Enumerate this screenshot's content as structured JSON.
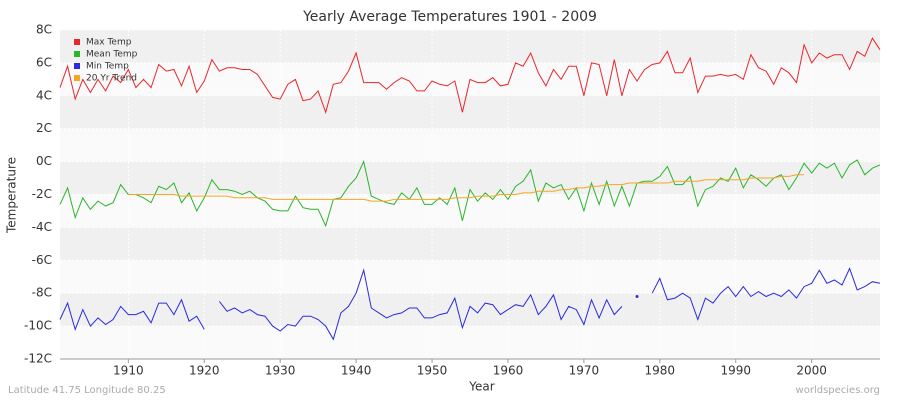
{
  "chart_data": {
    "type": "line",
    "title": "Yearly Average Temperatures 1901 - 2009",
    "x_label": "Year",
    "y_label": "Temperature",
    "footer_left": "Latitude 41.75 Longitude 80.25",
    "footer_right": "worldspecies.org",
    "legend": "top-left",
    "grid": true,
    "xlim": [
      1901,
      2009
    ],
    "ylim": [
      -12,
      8
    ],
    "xticks": [
      1910,
      1920,
      1930,
      1940,
      1950,
      1960,
      1970,
      1980,
      1990,
      2000
    ],
    "yticks": [
      {
        "value": -12,
        "label": "-12C"
      },
      {
        "value": -10,
        "label": "-10C"
      },
      {
        "value": -8,
        "label": "-8C"
      },
      {
        "value": -6,
        "label": "-6C"
      },
      {
        "value": -4,
        "label": "-4C"
      },
      {
        "value": -2,
        "label": "-2C"
      },
      {
        "value": 0,
        "label": "0C"
      },
      {
        "value": 2,
        "label": "2C"
      },
      {
        "value": 4,
        "label": "4C"
      },
      {
        "value": 6,
        "label": "6C"
      },
      {
        "value": 8,
        "label": "8C"
      }
    ],
    "x": [
      1901,
      1902,
      1903,
      1904,
      1905,
      1906,
      1907,
      1908,
      1909,
      1910,
      1911,
      1912,
      1913,
      1914,
      1915,
      1916,
      1917,
      1918,
      1919,
      1920,
      1921,
      1922,
      1923,
      1924,
      1925,
      1926,
      1927,
      1928,
      1929,
      1930,
      1931,
      1932,
      1933,
      1934,
      1935,
      1936,
      1937,
      1938,
      1939,
      1940,
      1941,
      1942,
      1943,
      1944,
      1945,
      1946,
      1947,
      1948,
      1949,
      1950,
      1951,
      1952,
      1953,
      1954,
      1955,
      1956,
      1957,
      1958,
      1959,
      1960,
      1961,
      1962,
      1963,
      1964,
      1965,
      1966,
      1967,
      1968,
      1969,
      1970,
      1971,
      1972,
      1973,
      1974,
      1975,
      1976,
      1977,
      1978,
      1979,
      1980,
      1981,
      1982,
      1983,
      1984,
      1985,
      1986,
      1987,
      1988,
      1989,
      1990,
      1991,
      1992,
      1993,
      1994,
      1995,
      1996,
      1997,
      1998,
      1999,
      2000,
      2001,
      2002,
      2003,
      2004,
      2005,
      2006,
      2007,
      2008,
      2009
    ],
    "series": [
      {
        "name": "Max Temp",
        "color": "#e8262b",
        "values": [
          4.5,
          5.8,
          3.8,
          5.0,
          4.2,
          5.0,
          4.3,
          5.2,
          4.8,
          5.6,
          4.5,
          5.0,
          4.5,
          5.9,
          5.5,
          5.6,
          4.6,
          5.8,
          4.2,
          4.9,
          6.2,
          5.5,
          5.7,
          5.7,
          5.6,
          5.6,
          5.3,
          4.6,
          3.9,
          3.8,
          4.7,
          5.0,
          3.7,
          3.8,
          4.3,
          3.0,
          4.7,
          4.8,
          5.5,
          6.6,
          4.8,
          4.8,
          4.8,
          4.4,
          4.8,
          5.1,
          4.9,
          4.3,
          4.3,
          4.9,
          4.7,
          4.6,
          4.9,
          3.0,
          5.0,
          4.8,
          4.8,
          5.1,
          4.6,
          4.7,
          6.0,
          5.8,
          6.6,
          5.4,
          4.6,
          5.6,
          5.0,
          5.8,
          5.8,
          4.0,
          6.0,
          5.9,
          4.0,
          6.2,
          4.0,
          5.6,
          4.9,
          5.6,
          5.9,
          6.0,
          6.7,
          5.4,
          5.4,
          6.3,
          4.2,
          5.2,
          5.2,
          5.3,
          5.2,
          5.3,
          5.0,
          6.5,
          5.7,
          5.5,
          4.7,
          5.7,
          5.4,
          4.8,
          7.1,
          6.0,
          6.6,
          6.3,
          6.5,
          6.5,
          5.6,
          6.7,
          6.4,
          7.5,
          6.8
        ]
      },
      {
        "name": "Mean Temp",
        "color": "#2ab52a",
        "values": [
          -2.6,
          -1.6,
          -3.4,
          -2.2,
          -2.9,
          -2.4,
          -2.7,
          -2.5,
          -1.4,
          -2.0,
          -2.0,
          -2.2,
          -2.5,
          -1.5,
          -1.7,
          -1.3,
          -2.5,
          -1.9,
          -3.0,
          -2.2,
          -1.1,
          -1.7,
          -1.7,
          -1.8,
          -2.0,
          -1.8,
          -2.2,
          -2.4,
          -2.9,
          -3.0,
          -3.0,
          -2.1,
          -2.8,
          -2.9,
          -2.9,
          -3.9,
          -2.3,
          -2.2,
          -1.5,
          -1.0,
          0.0,
          -2.1,
          -2.3,
          -2.5,
          -2.6,
          -1.9,
          -2.3,
          -1.6,
          -2.6,
          -2.6,
          -2.2,
          -2.6,
          -1.6,
          -3.6,
          -1.7,
          -2.4,
          -1.9,
          -2.3,
          -1.7,
          -2.3,
          -1.5,
          -1.2,
          -0.5,
          -2.4,
          -1.3,
          -1.6,
          -1.4,
          -2.3,
          -1.6,
          -3.0,
          -1.3,
          -2.6,
          -1.2,
          -2.7,
          -1.5,
          -2.7,
          -1.3,
          -1.2,
          -1.2,
          -0.9,
          -0.3,
          -1.4,
          -1.4,
          -0.9,
          -2.7,
          -1.7,
          -1.5,
          -1.0,
          -1.2,
          -0.4,
          -1.6,
          -0.8,
          -1.1,
          -1.5,
          -1.0,
          -0.8,
          -1.7,
          -1.0,
          -0.1,
          -0.7,
          -0.1,
          -0.4,
          -0.1,
          -1.0,
          -0.2,
          0.1,
          -0.8,
          -0.4,
          -0.2
        ]
      },
      {
        "name": "Min Temp",
        "color": "#2a2ae0",
        "values": [
          -9.6,
          -8.6,
          -10.2,
          -9.0,
          -10.0,
          -9.5,
          -9.9,
          -9.6,
          -8.8,
          -9.3,
          -9.3,
          -9.1,
          -9.8,
          -8.6,
          -8.6,
          -9.3,
          -8.4,
          -9.7,
          -9.4,
          -10.2,
          null,
          -8.5,
          -9.1,
          -8.9,
          -9.2,
          -9.0,
          -9.3,
          -9.4,
          -10.0,
          -10.3,
          -9.9,
          -10.0,
          -9.4,
          -9.4,
          -9.6,
          -10.0,
          -10.8,
          -9.2,
          -8.8,
          -8.0,
          -6.6,
          -8.9,
          -9.2,
          -9.5,
          -9.3,
          -9.2,
          -8.9,
          -8.9,
          -9.5,
          -9.5,
          -9.3,
          -9.2,
          -8.3,
          -10.1,
          -8.8,
          -9.2,
          -8.6,
          -8.7,
          -9.3,
          -9.0,
          -8.7,
          -8.8,
          -8.1,
          -9.3,
          -8.8,
          -8.1,
          -9.6,
          -8.8,
          -9.0,
          -9.9,
          -8.4,
          -9.5,
          -8.4,
          -9.3,
          -8.8,
          null,
          -8.2,
          null,
          -8.0,
          -7.1,
          -8.4,
          -8.3,
          -8.0,
          -8.3,
          -9.6,
          -8.3,
          -8.6,
          -8.0,
          -7.6,
          -8.2,
          -7.6,
          -8.2,
          -7.9,
          -8.2,
          -8.0,
          -8.2,
          -7.8,
          -8.3,
          -7.6,
          -7.4,
          -6.6,
          -7.4,
          -7.2,
          -7.5,
          -6.5,
          -7.8,
          -7.6,
          -7.3,
          -7.4
        ]
      },
      {
        "name": "20 Yr Trend",
        "color": "#f5a623",
        "values": [
          null,
          null,
          null,
          null,
          null,
          null,
          null,
          null,
          null,
          -2.0,
          -2.0,
          -2.0,
          -2.0,
          -2.0,
          -2.0,
          -2.0,
          -2.1,
          -2.1,
          -2.1,
          -2.1,
          -2.1,
          -2.1,
          -2.1,
          -2.2,
          -2.2,
          -2.2,
          -2.2,
          -2.2,
          -2.3,
          -2.3,
          -2.3,
          -2.3,
          -2.3,
          -2.3,
          -2.3,
          -2.3,
          -2.3,
          -2.3,
          -2.3,
          -2.3,
          -2.3,
          -2.4,
          -2.4,
          -2.4,
          -2.3,
          -2.3,
          -2.3,
          -2.3,
          -2.3,
          -2.3,
          -2.3,
          -2.3,
          -2.2,
          -2.2,
          -2.2,
          -2.1,
          -2.1,
          -2.1,
          -2.0,
          -2.0,
          -2.0,
          -1.9,
          -1.9,
          -1.8,
          -1.8,
          -1.8,
          -1.7,
          -1.7,
          -1.6,
          -1.6,
          -1.5,
          -1.5,
          -1.4,
          -1.4,
          -1.4,
          -1.3,
          -1.3,
          -1.3,
          -1.3,
          -1.3,
          -1.3,
          -1.2,
          -1.2,
          -1.2,
          -1.2,
          -1.1,
          -1.1,
          -1.1,
          -1.1,
          -1.1,
          -1.1,
          -1.0,
          -1.0,
          -1.0,
          -1.0,
          -0.9,
          -0.9,
          -0.8,
          -0.8,
          null,
          null,
          null,
          null,
          null,
          null,
          null,
          null,
          null,
          null
        ]
      }
    ]
  }
}
